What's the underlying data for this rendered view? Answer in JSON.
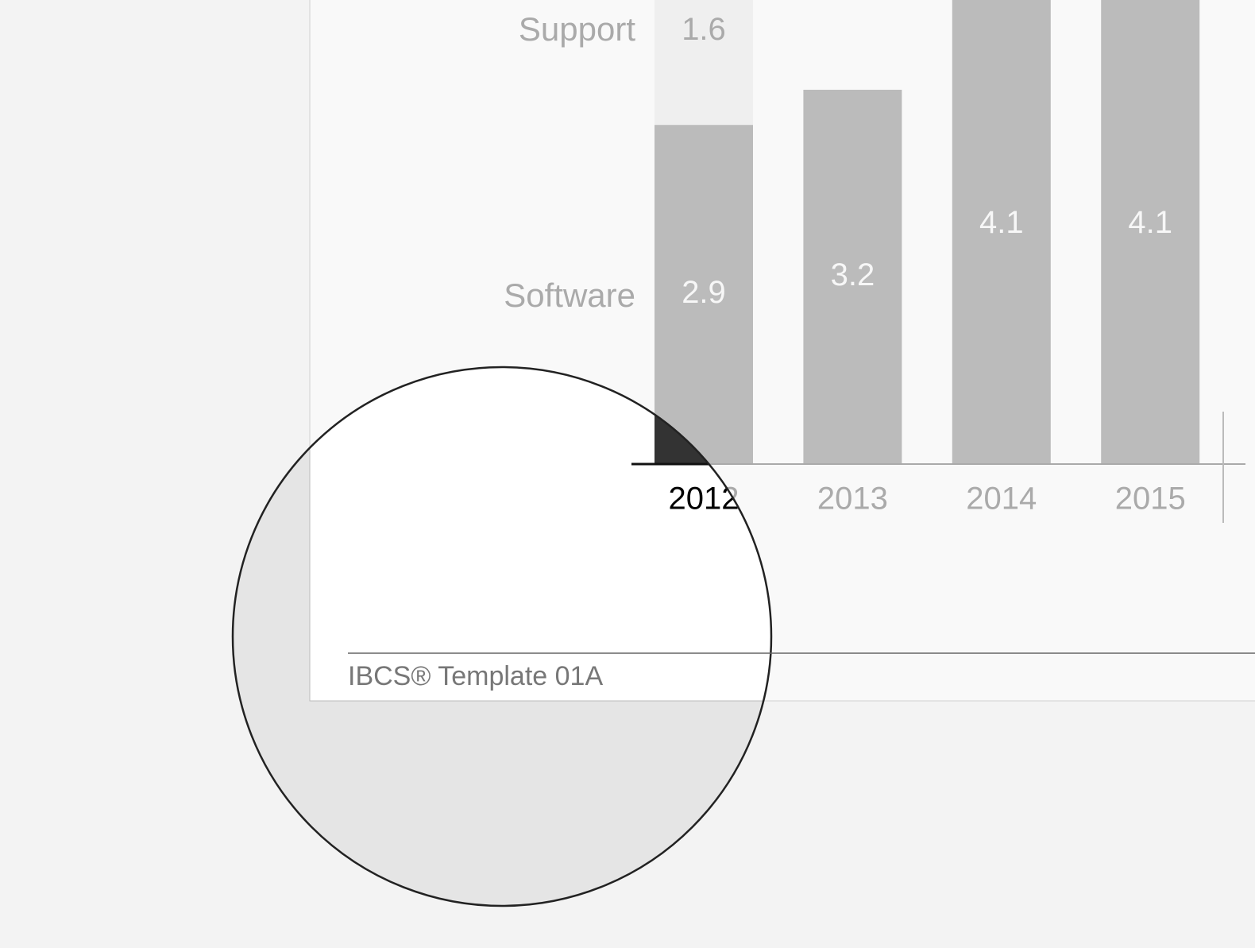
{
  "chart_data": {
    "type": "stacked-bar",
    "categories": [
      "2012",
      "2013",
      "2014",
      "2015"
    ],
    "series": [
      {
        "name": "Software",
        "color": "#bbbbbb",
        "values": [
          2.9,
          3.2,
          4.1,
          4.1
        ]
      },
      {
        "name": "Support",
        "color": "#efefef",
        "values": [
          1.6,
          null,
          null,
          null
        ]
      }
    ],
    "footer": "IBCS® Template 01A"
  }
}
